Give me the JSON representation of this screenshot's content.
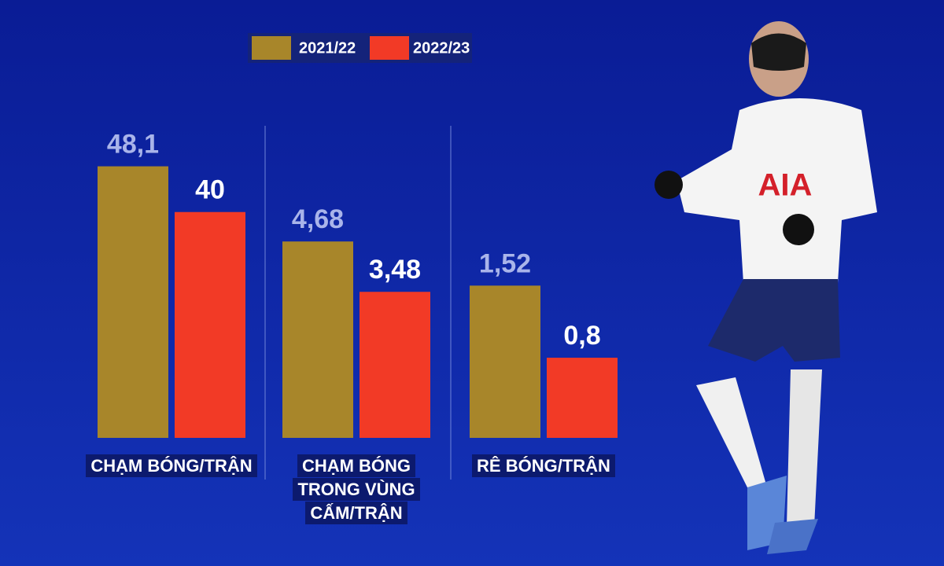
{
  "legend": [
    {
      "name": "2021/22",
      "color": "#a8862a"
    },
    {
      "name": "2022/23",
      "color": "#f23a26"
    }
  ],
  "chart_data": [
    {
      "type": "bar",
      "title": "CHẠM BÓNG/TRẬN",
      "values": [
        48.1,
        40
      ],
      "value_labels": [
        "48,1",
        "40"
      ],
      "ylim": [
        0,
        55
      ]
    },
    {
      "type": "bar",
      "title": "CHẠM BÓNG TRONG VÙNG CẤM/TRẬN",
      "values": [
        4.68,
        3.48
      ],
      "value_labels": [
        "4,68",
        "3,48"
      ],
      "ylim": [
        0,
        7.4
      ]
    },
    {
      "type": "bar",
      "title": "RÊ BÓNG/TRẬN",
      "values": [
        1.52,
        0.8
      ],
      "value_labels": [
        "1,52",
        "0,8"
      ],
      "ylim": [
        0,
        3.1
      ]
    }
  ]
}
